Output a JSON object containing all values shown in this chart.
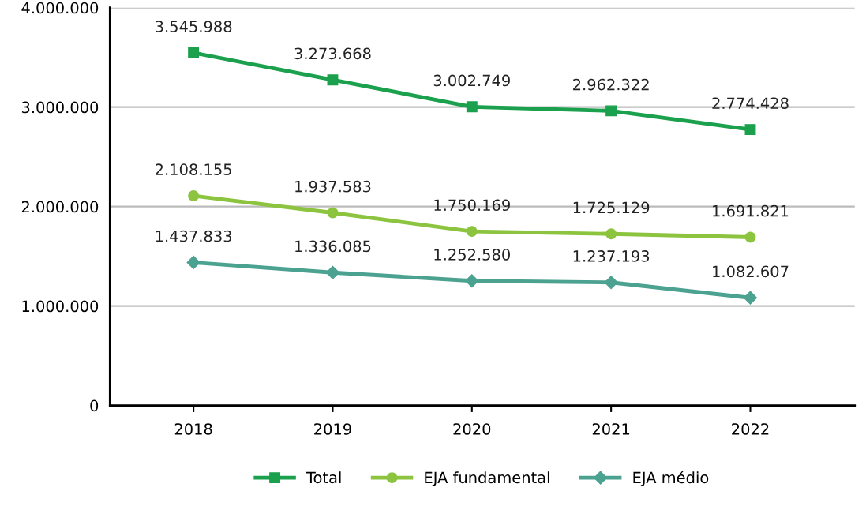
{
  "chart_data": {
    "type": "line",
    "categories": [
      "2018",
      "2019",
      "2020",
      "2021",
      "2022"
    ],
    "series": [
      {
        "name": "Total",
        "color": "#1ba04d",
        "marker": "square",
        "values": [
          3545988,
          3273668,
          3002749,
          2962322,
          2774428
        ],
        "value_labels": [
          "3.545.988",
          "3.273.668",
          "3.002.749",
          "2.962.322",
          "2.774.428"
        ]
      },
      {
        "name": "EJA fundamental",
        "color": "#8cc43f",
        "marker": "circle",
        "values": [
          2108155,
          1937583,
          1750169,
          1725129,
          1691821
        ],
        "value_labels": [
          "2.108.155",
          "1.937.583",
          "1.750.169",
          "1.725.129",
          "1.691.821"
        ]
      },
      {
        "name": "EJA médio",
        "color": "#4ca290",
        "marker": "diamond",
        "values": [
          1437833,
          1336085,
          1252580,
          1237193,
          1082607
        ],
        "value_labels": [
          "1.437.833",
          "1.336.085",
          "1.252.580",
          "1.237.193",
          "1.082.607"
        ]
      }
    ],
    "ylim": [
      0,
      4000000
    ],
    "yticks": [
      {
        "value": 0,
        "label": "0"
      },
      {
        "value": 1000000,
        "label": "1.000.000"
      },
      {
        "value": 2000000,
        "label": "2.000.000"
      },
      {
        "value": 3000000,
        "label": "3.000.000"
      },
      {
        "value": 4000000,
        "label": "4.000.000"
      }
    ],
    "grid": "y",
    "legend": "bottom",
    "line_style": "solid"
  }
}
